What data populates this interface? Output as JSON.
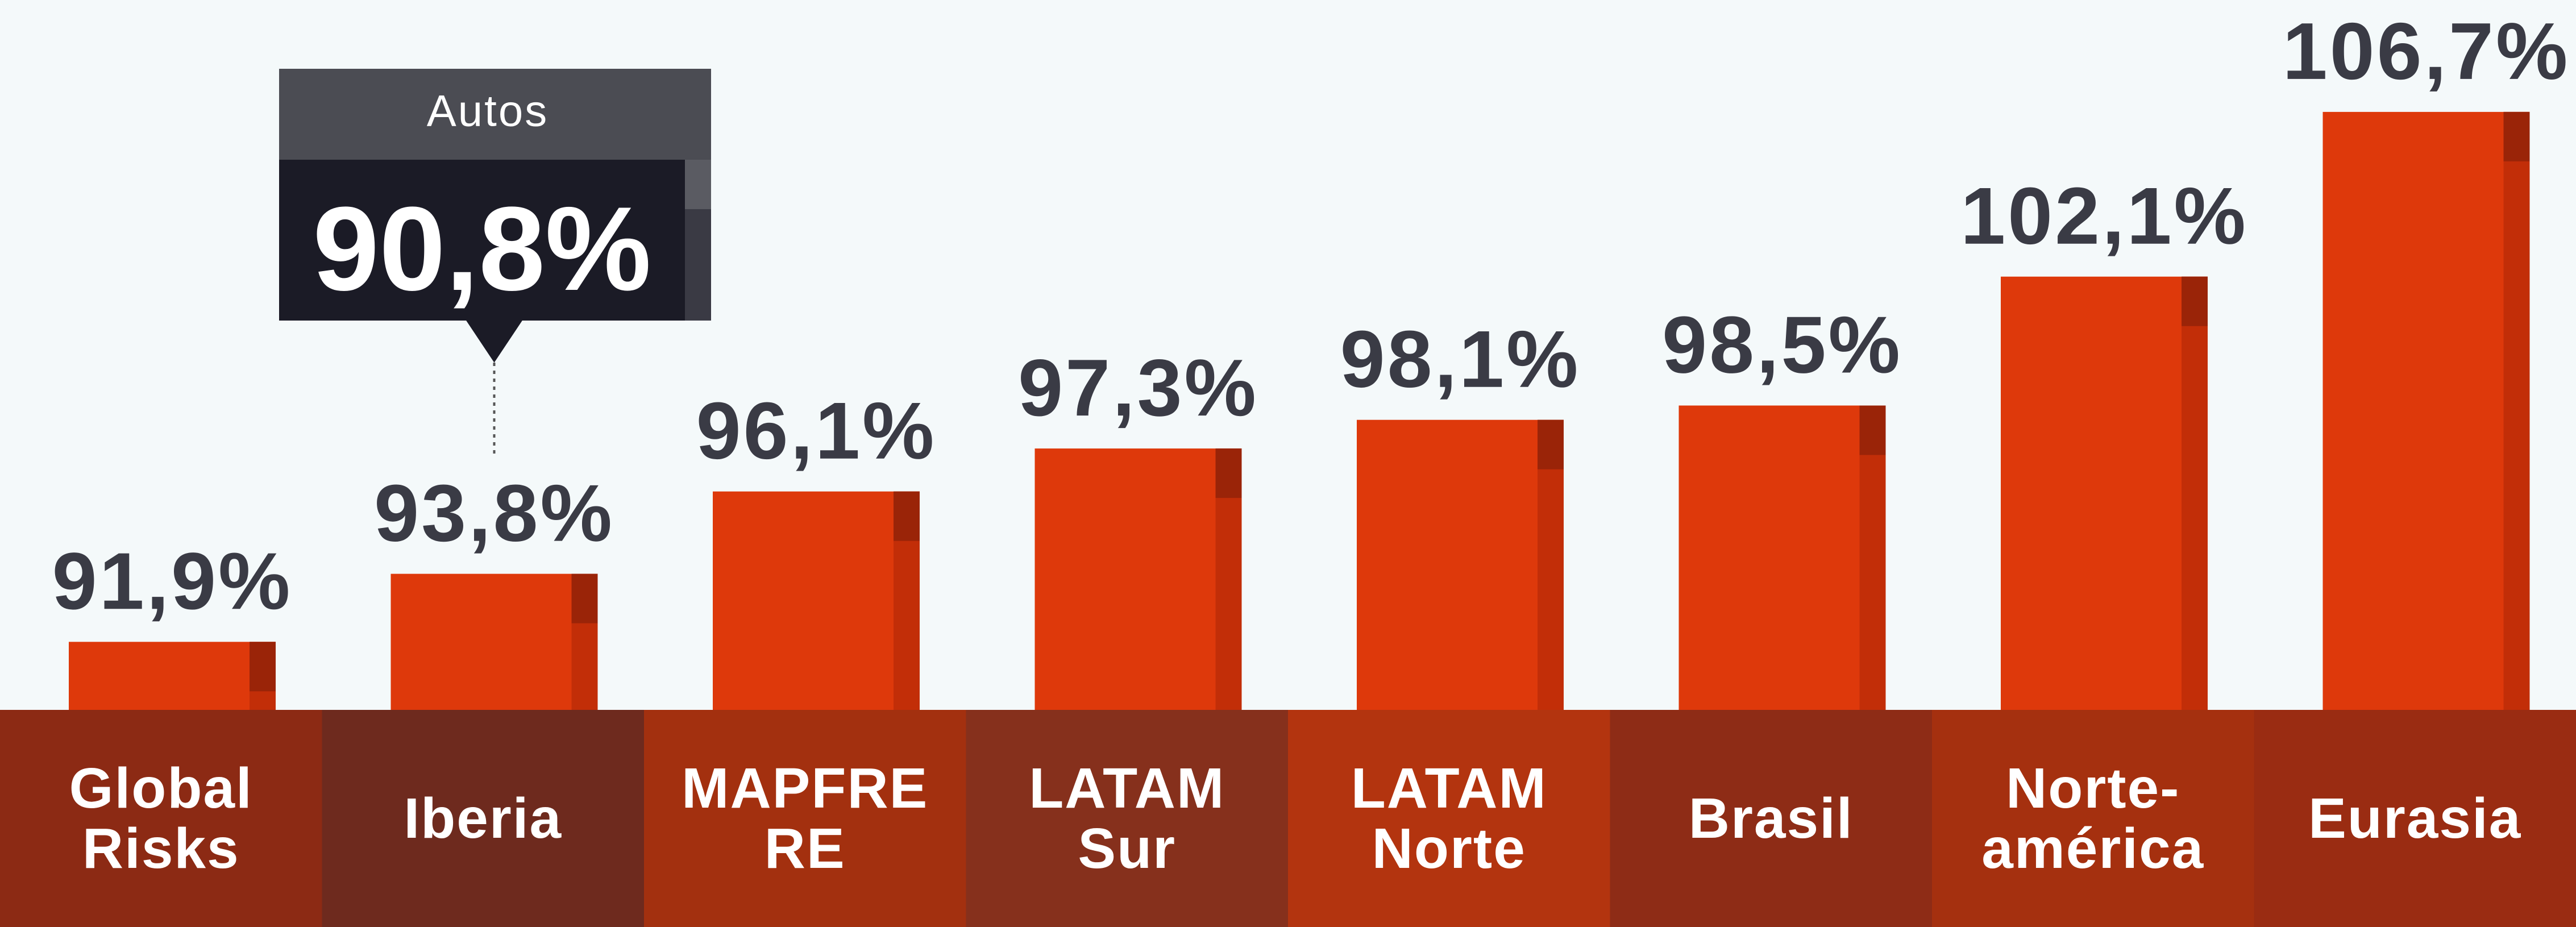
{
  "chart_data": {
    "type": "bar",
    "categories": [
      "Global Risks",
      "Iberia",
      "MAPFRE RE",
      "LATAM Sur",
      "LATAM Norte",
      "Brasil",
      "Norte-américa",
      "Eurasia"
    ],
    "values": [
      91.9,
      93.8,
      96.1,
      97.3,
      98.1,
      98.5,
      102.1,
      106.7
    ],
    "value_labels": [
      "91,9%",
      "93,8%",
      "96,1%",
      "97,3%",
      "98,1%",
      "98,5%",
      "102,1%",
      "106,7%"
    ],
    "color": "#de390b",
    "ylim": [
      90,
      110
    ],
    "annotation": {
      "label": "Autos",
      "text": "90,8%",
      "category_index": 1
    }
  }
}
